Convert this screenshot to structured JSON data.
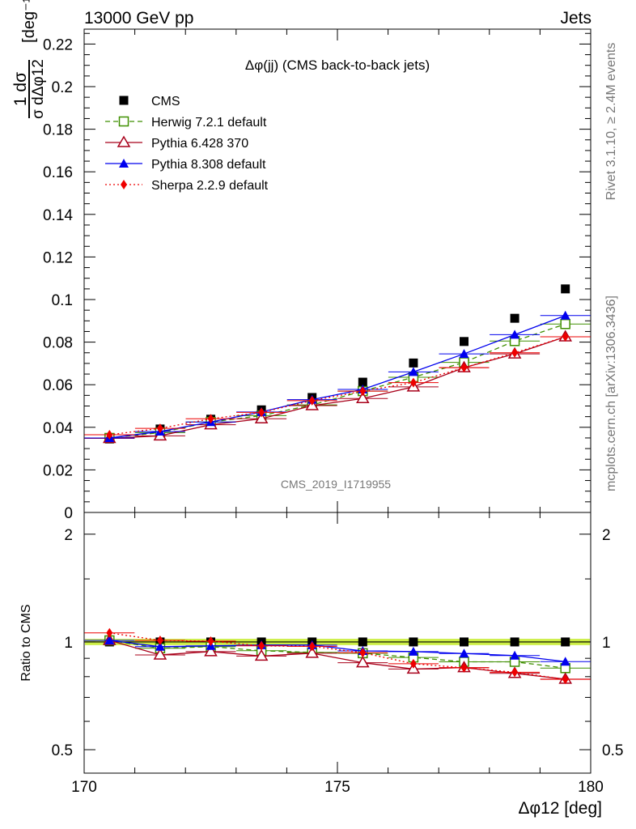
{
  "header": {
    "left": "13000 GeV pp",
    "right": "Jets"
  },
  "side": {
    "rivet": "Rivet 3.1.10, ≥ 2.4M events",
    "mcplots": "mcplots.cern.ch [arXiv:1306.3436]"
  },
  "plot_title": "Δφ(jj) (CMS back-to-back jets)",
  "analysis_id": "CMS_2019_I1719955",
  "ylabel_top": "1/σ dσ/dΔφ12 [deg⁻¹]",
  "ylabel_ratio": "Ratio to CMS",
  "xlabel": "Δφ12 [deg]",
  "legend": [
    "CMS",
    "Herwig 7.2.1 default",
    "Pythia 6.428 370",
    "Pythia 8.308 default",
    "Sherpa 2.2.9 default"
  ],
  "colors": {
    "cms": "#000000",
    "herwig": "#3f8f00",
    "pythia6": "#a8001a",
    "pythia8": "#0000ee",
    "sherpa": "#ee0000",
    "band": "#ccee44"
  },
  "chart_data": [
    {
      "type": "line",
      "panel": "main",
      "x": [
        170.5,
        171.5,
        172.5,
        173.5,
        174.5,
        175.5,
        176.5,
        177.5,
        178.5,
        179.5
      ],
      "xlim": [
        170,
        180
      ],
      "ylim": [
        0,
        0.227
      ],
      "yticks": [
        0,
        0.02,
        0.04,
        0.06,
        0.08,
        0.1,
        0.12,
        0.14,
        0.16,
        0.18,
        0.2,
        0.22
      ],
      "xticks": [
        170,
        175,
        180
      ],
      "series": [
        {
          "name": "CMS",
          "values": [
            0.0345,
            0.0392,
            0.0438,
            0.0482,
            0.054,
            0.0612,
            0.0702,
            0.0803,
            0.0912,
            0.105
          ]
        },
        {
          "name": "Herwig 7.2.1 default",
          "values": [
            0.035,
            0.0375,
            0.0425,
            0.0455,
            0.0505,
            0.057,
            0.0635,
            0.0705,
            0.0805,
            0.0885
          ]
        },
        {
          "name": "Pythia 6.428 370",
          "values": [
            0.0348,
            0.036,
            0.0412,
            0.044,
            0.0502,
            0.0535,
            0.059,
            0.068,
            0.0745,
            0.0825
          ]
        },
        {
          "name": "Pythia 8.308 default",
          "values": [
            0.035,
            0.038,
            0.0425,
            0.0472,
            0.053,
            0.0578,
            0.066,
            0.0745,
            0.0835,
            0.0925
          ]
        },
        {
          "name": "Sherpa 2.2.9 default",
          "values": [
            0.0365,
            0.0395,
            0.044,
            0.047,
            0.0525,
            0.057,
            0.061,
            0.068,
            0.075,
            0.0825
          ]
        }
      ]
    },
    {
      "type": "line",
      "panel": "ratio",
      "scale": "log",
      "x": [
        170.5,
        171.5,
        172.5,
        173.5,
        174.5,
        175.5,
        176.5,
        177.5,
        178.5,
        179.5
      ],
      "xlim": [
        170,
        180
      ],
      "ylim": [
        0.43,
        2.3
      ],
      "yticks": [
        0.5,
        1,
        2
      ],
      "xticks": [
        170,
        175,
        180
      ],
      "series": [
        {
          "name": "CMS",
          "values": [
            1,
            1,
            1,
            1,
            1,
            1,
            1,
            1,
            1,
            1
          ]
        },
        {
          "name": "Herwig 7.2.1 default",
          "values": [
            1.01,
            0.96,
            0.97,
            0.945,
            0.935,
            0.93,
            0.905,
            0.88,
            0.88,
            0.845
          ]
        },
        {
          "name": "Pythia 6.428 370",
          "values": [
            1.01,
            0.92,
            0.94,
            0.913,
            0.93,
            0.875,
            0.84,
            0.848,
            0.817,
            0.787
          ]
        },
        {
          "name": "Pythia 8.308 default",
          "values": [
            1.01,
            0.97,
            0.975,
            0.98,
            0.98,
            0.944,
            0.94,
            0.928,
            0.916,
            0.881
          ]
        },
        {
          "name": "Sherpa 2.2.9 default",
          "values": [
            1.06,
            1.01,
            1.005,
            0.975,
            0.972,
            0.933,
            0.869,
            0.847,
            0.823,
            0.786
          ]
        }
      ]
    }
  ]
}
